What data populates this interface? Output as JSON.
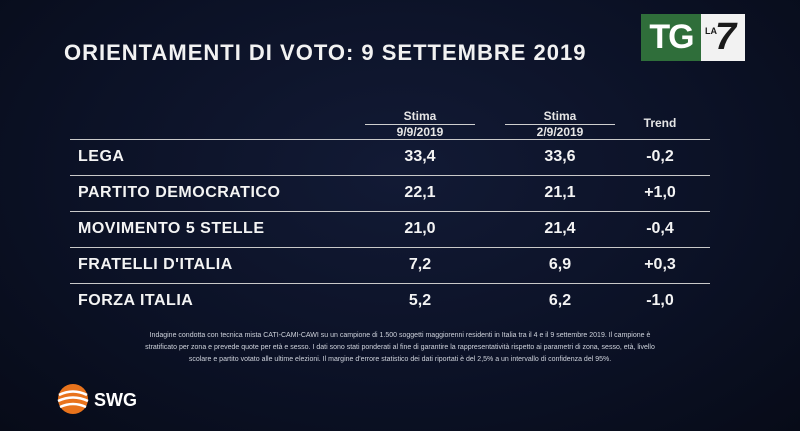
{
  "title": "ORIENTAMENTI DI VOTO: 9 SETTEMBRE 2019",
  "broadcaster_logo": {
    "left": "TG",
    "right_small": "LA",
    "right_big": "7"
  },
  "table": {
    "columns": [
      {
        "line1": "Stima",
        "line2": "9/9/2019"
      },
      {
        "line1": "Stima",
        "line2": "2/9/2019"
      },
      {
        "line1": "Trend",
        "line2": ""
      }
    ],
    "rows": [
      {
        "party": "LEGA",
        "v1": "33,4",
        "v2": "33,6",
        "trend": "-0,2"
      },
      {
        "party": "PARTITO DEMOCRATICO",
        "v1": "22,1",
        "v2": "21,1",
        "trend": "+1,0"
      },
      {
        "party": "MOVIMENTO 5 STELLE",
        "v1": "21,0",
        "v2": "21,4",
        "trend": "-0,4"
      },
      {
        "party": "FRATELLI D'ITALIA",
        "v1": "7,2",
        "v2": "6,9",
        "trend": "+0,3"
      },
      {
        "party": "FORZA ITALIA",
        "v1": "5,2",
        "v2": "6,2",
        "trend": "-1,0"
      }
    ]
  },
  "note": {
    "line1": "Indagine condotta con tecnica mista CATI-CAMI-CAWI su un campione di 1.500 soggetti maggiorenni residenti in Italia tra il 4 e il 9 settembre 2019. Il campione è",
    "line2": "stratificato per zona e prevede quote per età e sesso. I dati sono stati ponderati al fine di garantire la rappresentatività rispetto ai parametri di zona, sesso, età, livello",
    "line3": "scolare e partito votato alle ultime elezioni. Il margine d'errore statistico dei dati riportati è del 2,5% a un intervallo di confidenza del 95%."
  },
  "source_logo": {
    "text": "SWG"
  },
  "chart_data": {
    "type": "table",
    "title": "ORIENTAMENTI DI VOTO: 9 SETTEMBRE 2019",
    "headers": [
      "",
      "Stima 9/9/2019",
      "Stima 2/9/2019",
      "Trend"
    ],
    "rows": [
      [
        "LEGA",
        "33,4",
        "33,6",
        "-0,2"
      ],
      [
        "PARTITO DEMOCRATICO",
        "22,1",
        "21,1",
        "+1,0"
      ],
      [
        "MOVIMENTO 5 STELLE",
        "21,0",
        "21,4",
        "-0,4"
      ],
      [
        "FRATELLI D'ITALIA",
        "7,2",
        "6,9",
        "+0,3"
      ],
      [
        "FORZA ITALIA",
        "5,2",
        "6,2",
        "-1,0"
      ]
    ]
  },
  "colors": {
    "background": "#0b1125",
    "logo_green": "#2f6e3a",
    "swg_orange": "#e8731c",
    "text": "#ffffff"
  }
}
